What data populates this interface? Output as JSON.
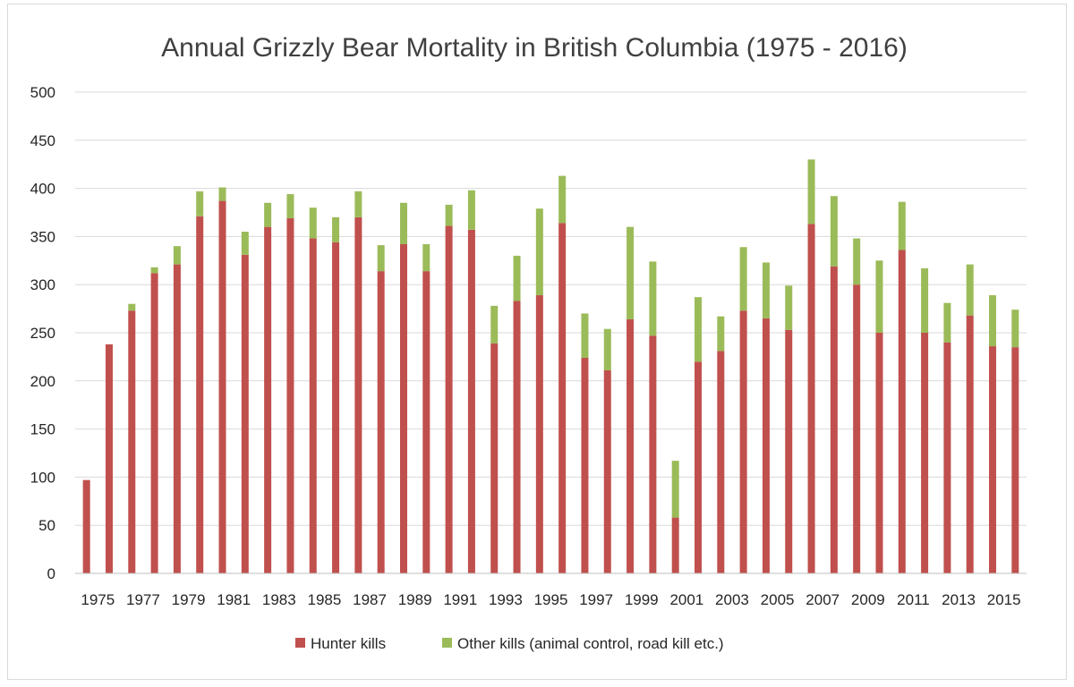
{
  "chart_data": {
    "type": "bar",
    "stacked": true,
    "title": "Annual Grizzly Bear Mortality in British Columbia (1975 - 2016)",
    "xlabel": "",
    "ylabel": "",
    "ylim": [
      0,
      500
    ],
    "yticks": [
      "0",
      "50",
      "100",
      "150",
      "200",
      "250",
      "300",
      "350",
      "400",
      "450",
      "500"
    ],
    "grid": true,
    "legend_position": "bottom",
    "categories": [
      "1975",
      "1976",
      "1977",
      "1978",
      "1979",
      "1980",
      "1981",
      "1982",
      "1983",
      "1984",
      "1985",
      "1986",
      "1987",
      "1988",
      "1989",
      "1990",
      "1991",
      "1992",
      "1993",
      "1994",
      "1995",
      "1996",
      "1997",
      "1998",
      "1999",
      "2000",
      "2001",
      "2002",
      "2003",
      "2004",
      "2005",
      "2006",
      "2007",
      "2008",
      "2009",
      "2010",
      "2011",
      "2012",
      "2013",
      "2014",
      "2015",
      "2016"
    ],
    "x_tick_labels": [
      "1975",
      "",
      "1977",
      "",
      "1979",
      "",
      "1981",
      "",
      "1983",
      "",
      "1985",
      "",
      "1987",
      "",
      "1989",
      "",
      "1991",
      "",
      "1993",
      "",
      "1995",
      "",
      "1997",
      "",
      "1999",
      "",
      "2001",
      "",
      "2003",
      "",
      "2005",
      "",
      "2007",
      "",
      "2009",
      "",
      "2011",
      "",
      "2013",
      "",
      "2015",
      ""
    ],
    "series": [
      {
        "name": "Hunter kills",
        "color": "#c0504d",
        "values": [
          97,
          238,
          273,
          312,
          321,
          371,
          387,
          331,
          360,
          369,
          348,
          344,
          370,
          314,
          342,
          314,
          361,
          357,
          239,
          283,
          289,
          364,
          224,
          211,
          264,
          247,
          58,
          220,
          231,
          273,
          265,
          253,
          363,
          319,
          300,
          250,
          336,
          250,
          240,
          268,
          236,
          235
        ]
      },
      {
        "name": "Other kills (animal control, road kill etc.)",
        "color": "#9bbb59",
        "values": [
          0,
          0,
          7,
          6,
          19,
          26,
          14,
          24,
          25,
          25,
          32,
          26,
          27,
          27,
          43,
          28,
          22,
          41,
          39,
          47,
          90,
          49,
          46,
          43,
          96,
          77,
          59,
          67,
          36,
          66,
          58,
          46,
          67,
          73,
          48,
          75,
          50,
          67,
          41,
          53,
          53,
          39
        ]
      }
    ]
  }
}
